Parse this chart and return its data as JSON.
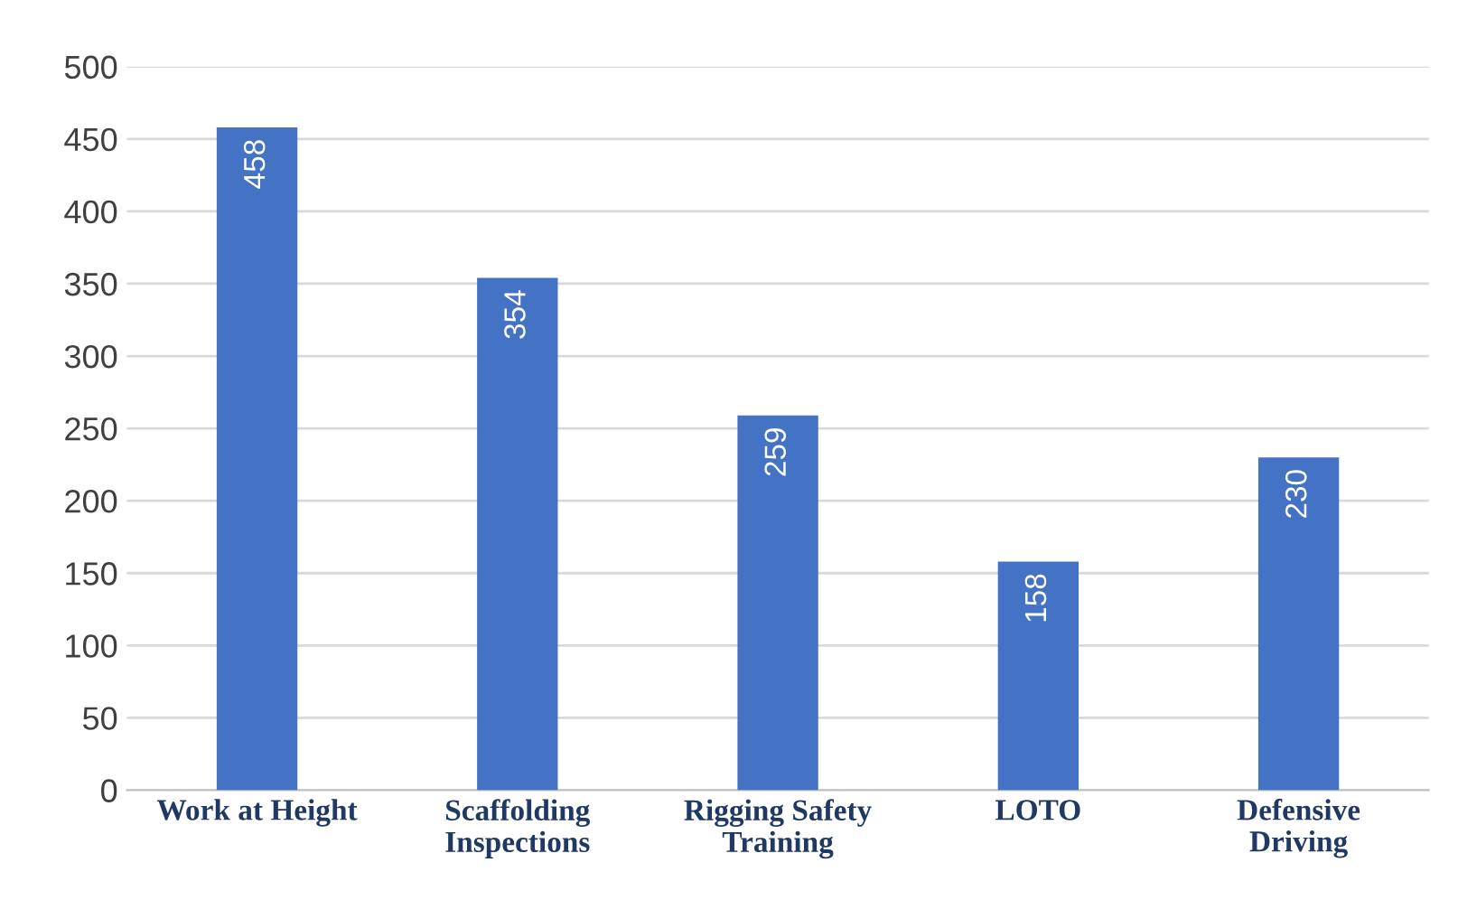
{
  "chart_data": {
    "type": "bar",
    "categories": [
      "Work at Height",
      "Scaffolding\nInspections",
      "Rigging Safety\nTraining",
      "LOTO",
      "Defensive\nDriving"
    ],
    "values": [
      458,
      354,
      259,
      158,
      230
    ],
    "color": "#4472c4",
    "ylim": [
      0,
      500
    ],
    "yticks": [
      0,
      50,
      100,
      150,
      200,
      250,
      300,
      350,
      400,
      450,
      500
    ],
    "grid": "y",
    "data_labels": true,
    "legend": false
  }
}
